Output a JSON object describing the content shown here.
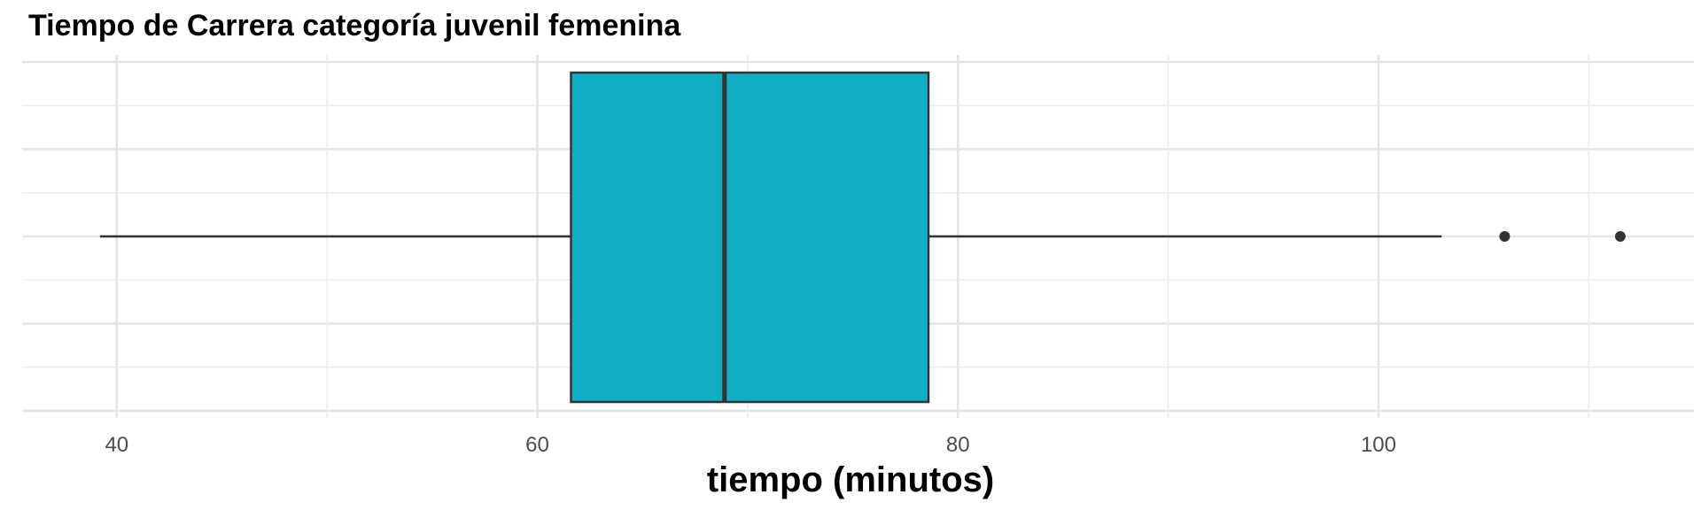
{
  "chart_data": {
    "type": "boxplot",
    "title": "Tiempo de Carrera categoría juvenil femenina",
    "xlabel": "tiempo (minutos)",
    "ylabel": "",
    "xlim": [
      35.5,
      115
    ],
    "x_ticks": [
      40,
      60,
      80,
      100
    ],
    "x_tick_labels": [
      "40",
      "60",
      "80",
      "100"
    ],
    "x_minor_gridlines": [
      50,
      70,
      90,
      110
    ],
    "y_tick_labels": [
      "",
      "",
      "",
      "",
      ""
    ],
    "grid": true,
    "orientation": "horizontal",
    "box": {
      "whisker_low": 39.2,
      "q1": 61.6,
      "median": 68.9,
      "q3": 78.6,
      "whisker_high": 103,
      "outliers": [
        106,
        111.5
      ],
      "fill": "#11AFC6",
      "stroke": "#333333"
    }
  }
}
